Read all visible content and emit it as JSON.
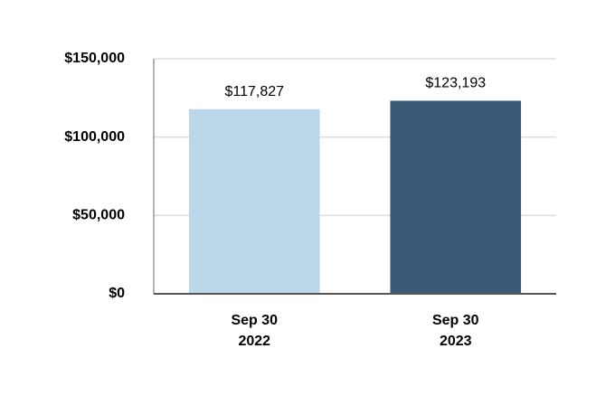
{
  "chart_data": {
    "type": "bar",
    "categories": [
      "Sep 30\n2022",
      "Sep 30\n2023"
    ],
    "values": [
      117827,
      123193
    ],
    "value_labels": [
      "$117,827",
      "$123,193"
    ],
    "colors": [
      "#bcd6ea",
      "#3b5a78"
    ],
    "ylim": [
      0,
      150000
    ],
    "yticks": [
      {
        "value": 0,
        "label": "$0"
      },
      {
        "value": 50000,
        "label": "$50,000"
      },
      {
        "value": 100000,
        "label": "$100,000"
      },
      {
        "value": 150000,
        "label": "$150,000"
      }
    ],
    "grid": true
  }
}
